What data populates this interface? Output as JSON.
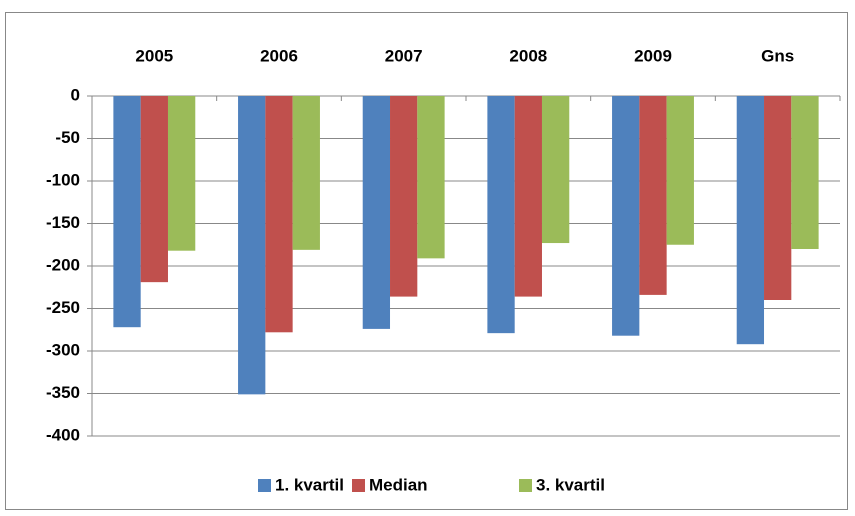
{
  "chart_data": {
    "type": "bar",
    "categories": [
      "2005",
      "2006",
      "2007",
      "2008",
      "2009",
      "Gns"
    ],
    "series": [
      {
        "name": "1. kvartil",
        "color": "#4f81bd",
        "values": [
          -272,
          -351,
          -274,
          -279,
          -282,
          -292
        ]
      },
      {
        "name": "Median",
        "color": "#c0504d",
        "values": [
          -219,
          -278,
          -236,
          -236,
          -234,
          -240
        ]
      },
      {
        "name": "3. kvartil",
        "color": "#9bbb59",
        "values": [
          -182,
          -181,
          -191,
          -173,
          -175,
          -180
        ]
      }
    ],
    "ylim": [
      -400,
      0
    ],
    "yticks": [
      0,
      -50,
      -100,
      -150,
      -200,
      -250,
      -300,
      -350,
      -400
    ],
    "grid": true,
    "legend": "bottom"
  }
}
